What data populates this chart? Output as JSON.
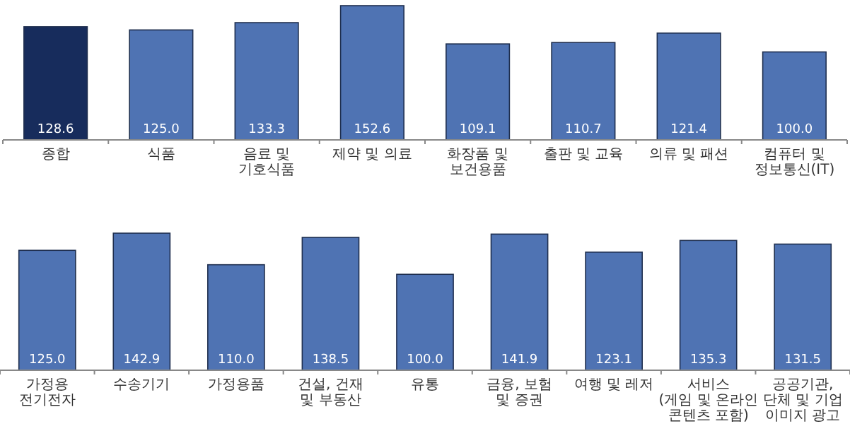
{
  "chart_data": [
    {
      "type": "bar",
      "categories": [
        "종합",
        "식품",
        "음료 및\n기호식품",
        "제약 및 의료",
        "화장품 및\n보건용품",
        "출판 및 교육",
        "의류 및 패션",
        "컴퓨터 및\n정보통신(IT)"
      ],
      "values": [
        128.6,
        125.0,
        133.3,
        152.6,
        109.1,
        110.7,
        121.4,
        100.0
      ],
      "colors": [
        "#172c5c",
        "#4f73b3",
        "#4f73b3",
        "#4f73b3",
        "#4f73b3",
        "#4f73b3",
        "#4f73b3",
        "#4f73b3"
      ],
      "value_labels": [
        "128.6",
        "125.0",
        "133.3",
        "152.6",
        "109.1",
        "110.7",
        "121.4",
        "100.0"
      ]
    },
    {
      "type": "bar",
      "categories": [
        "가정용\n전기전자",
        "수송기기",
        "가정용품",
        "건설, 건재\n및 부동산",
        "유통",
        "금융, 보험\n및 증권",
        "여행 및 레저",
        "서비스\n(게임 및 온라인\n콘텐츠 포함)",
        "공공기관,\n단체 및 기업\n이미지 광고"
      ],
      "values": [
        125.0,
        142.9,
        110.0,
        138.5,
        100.0,
        141.9,
        123.1,
        135.3,
        131.5
      ],
      "colors": [
        "#4f73b3",
        "#4f73b3",
        "#4f73b3",
        "#4f73b3",
        "#4f73b3",
        "#4f73b3",
        "#4f73b3",
        "#4f73b3",
        "#4f73b3"
      ],
      "value_labels": [
        "125.0",
        "142.9",
        "110.0",
        "138.5",
        "100.0",
        "141.9",
        "123.1",
        "135.3",
        "131.5"
      ]
    }
  ]
}
